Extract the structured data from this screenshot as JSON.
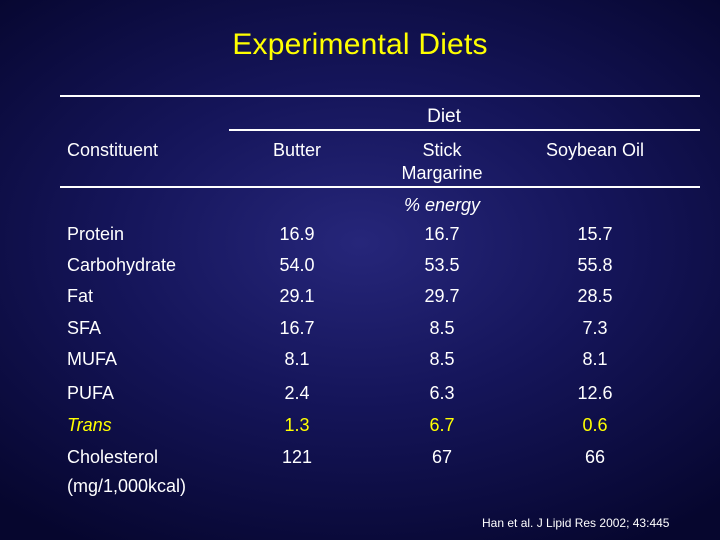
{
  "title": "Experimental Diets",
  "table": {
    "group_header": "Diet",
    "constituent_header": "Constituent",
    "columns": [
      "Butter",
      "Stick Margarine",
      "Soybean Oil"
    ],
    "column_line1": [
      "Butter",
      "Stick",
      "Soybean Oil"
    ],
    "column_line2": [
      "",
      "Margarine",
      ""
    ],
    "unit_label": "% energy",
    "rows": [
      {
        "label": "Protein",
        "values": [
          "16.9",
          "16.7",
          "15.7"
        ]
      },
      {
        "label": "Carbohydrate",
        "values": [
          "54.0",
          "53.5",
          "55.8"
        ]
      },
      {
        "label": "Fat",
        "values": [
          "29.1",
          "29.7",
          "28.5"
        ]
      },
      {
        "label": "SFA",
        "values": [
          "16.7",
          "8.5",
          "7.3"
        ]
      },
      {
        "label": "MUFA",
        "values": [
          "8.1",
          "8.5",
          "8.1"
        ]
      },
      {
        "label": "PUFA",
        "values": [
          "2.4",
          "6.3",
          "12.6"
        ]
      },
      {
        "label": "Trans",
        "values": [
          "1.3",
          "6.7",
          "0.6"
        ]
      },
      {
        "label": "Cholesterol",
        "label_line2": "(mg/1,000kcal)",
        "values": [
          "121",
          "67",
          "66"
        ]
      }
    ]
  },
  "citation": "Han et al. J Lipid Res 2002; 43:445",
  "colors": {
    "title": "#ffff00",
    "text": "#ffffff",
    "highlight": "#ffff00",
    "background": "#15155a"
  }
}
